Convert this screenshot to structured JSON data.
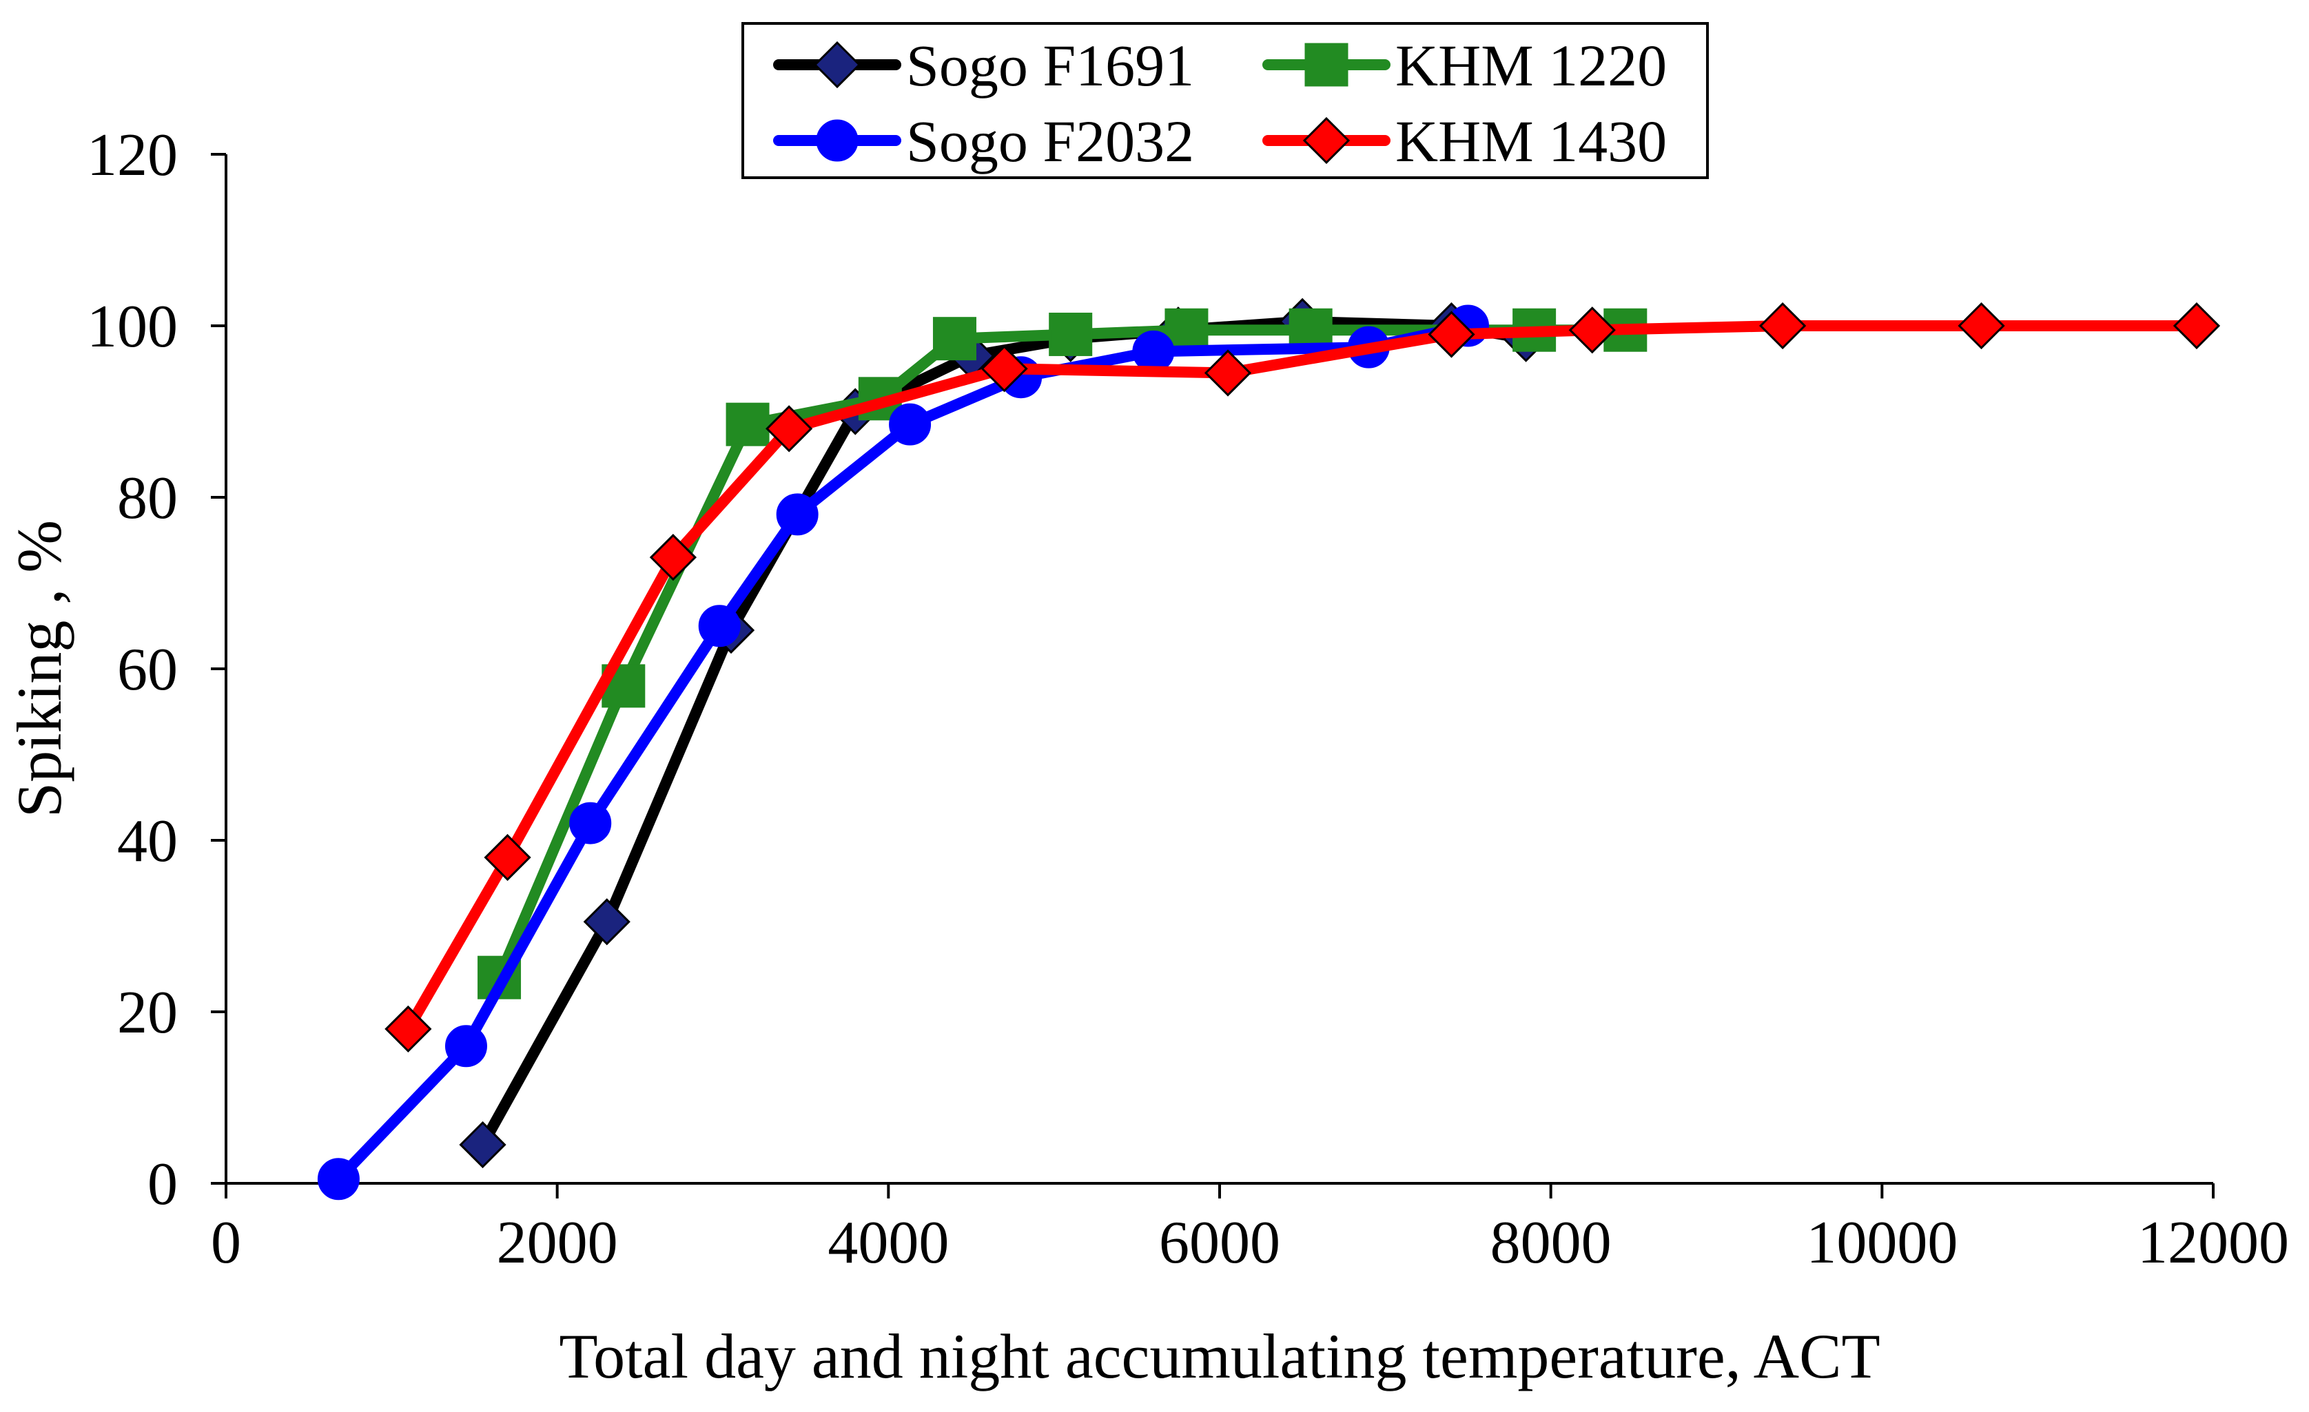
{
  "chart_data": {
    "type": "line",
    "title": "",
    "xlabel": "Total day and night accumulating temperature, ACT",
    "ylabel": "Spiking , %",
    "xlim": [
      0,
      12000
    ],
    "ylim": [
      0,
      120
    ],
    "x_ticks": [
      0,
      2000,
      4000,
      6000,
      8000,
      10000,
      12000
    ],
    "y_ticks": [
      0,
      20,
      40,
      60,
      80,
      100,
      120
    ],
    "grid": false,
    "legend_position": "top-center",
    "series": [
      {
        "name": "Sogo F1691",
        "color": "#000000",
        "marker": "diamond",
        "marker_fill": "#1a237e",
        "x": [
          1550,
          2300,
          3050,
          3800,
          4500,
          5100,
          5750,
          6500,
          7400,
          7850
        ],
        "y": [
          4.5,
          30.5,
          64.5,
          90,
          96.5,
          98.5,
          99.5,
          100.5,
          100,
          98.5
        ]
      },
      {
        "name": "KHM 1220",
        "color": "#228b22",
        "marker": "square",
        "marker_fill": "#228b22",
        "x": [
          1650,
          2400,
          3150,
          3950,
          4400,
          5100,
          5800,
          6550,
          7900,
          8450
        ],
        "y": [
          24,
          58,
          88.5,
          91.5,
          98.5,
          99,
          99.5,
          99.5,
          99.5,
          99.5
        ]
      },
      {
        "name": "Sogo F2032",
        "color": "#0000ff",
        "marker": "circle",
        "marker_fill": "#0000ff",
        "x": [
          680,
          1450,
          2200,
          2980,
          3450,
          4130,
          4800,
          5600,
          6900,
          7500
        ],
        "y": [
          0.5,
          16,
          42,
          65,
          78,
          88.5,
          94,
          97,
          97.5,
          100
        ]
      },
      {
        "name": "KHM 1430",
        "color": "#ff0000",
        "marker": "diamond",
        "marker_fill": "#ff0000",
        "x": [
          1100,
          1700,
          2700,
          3400,
          4700,
          6050,
          7400,
          8250,
          9400,
          10600,
          11900
        ],
        "y": [
          18,
          38,
          73,
          88,
          95,
          94.5,
          99,
          99.5,
          100,
          100,
          100
        ]
      }
    ]
  }
}
